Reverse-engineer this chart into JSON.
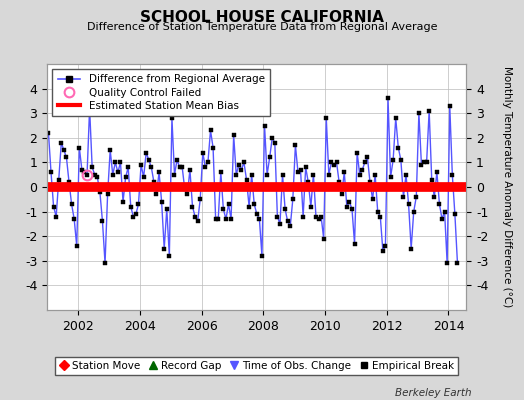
{
  "title": "SCHOOL HOUSE CALIFORNIA",
  "subtitle": "Difference of Station Temperature Data from Regional Average",
  "ylabel": "Monthly Temperature Anomaly Difference (°C)",
  "bias_value": 0.0,
  "ylim": [
    -5,
    5
  ],
  "xlim_start": 2001.0,
  "xlim_end": 2014.58,
  "xticks": [
    2002,
    2004,
    2006,
    2008,
    2010,
    2012,
    2014
  ],
  "yticks": [
    -4,
    -3,
    -2,
    -1,
    0,
    1,
    2,
    3,
    4
  ],
  "line_color": "#5555ff",
  "marker_color": "#000000",
  "bias_color": "#ff0000",
  "bias_linewidth": 7,
  "qc_color": "#ff69b4",
  "background_color": "#d8d8d8",
  "plot_bg_color": "#ffffff",
  "footer_text": "Berkeley Earth",
  "data": {
    "times": [
      2001.042,
      2001.125,
      2001.208,
      2001.292,
      2001.375,
      2001.458,
      2001.542,
      2001.625,
      2001.708,
      2001.792,
      2001.875,
      2001.958,
      2002.042,
      2002.125,
      2002.208,
      2002.292,
      2002.375,
      2002.458,
      2002.542,
      2002.625,
      2002.708,
      2002.792,
      2002.875,
      2002.958,
      2003.042,
      2003.125,
      2003.208,
      2003.292,
      2003.375,
      2003.458,
      2003.542,
      2003.625,
      2003.708,
      2003.792,
      2003.875,
      2003.958,
      2004.042,
      2004.125,
      2004.208,
      2004.292,
      2004.375,
      2004.458,
      2004.542,
      2004.625,
      2004.708,
      2004.792,
      2004.875,
      2004.958,
      2005.042,
      2005.125,
      2005.208,
      2005.292,
      2005.375,
      2005.458,
      2005.542,
      2005.625,
      2005.708,
      2005.792,
      2005.875,
      2005.958,
      2006.042,
      2006.125,
      2006.208,
      2006.292,
      2006.375,
      2006.458,
      2006.542,
      2006.625,
      2006.708,
      2006.792,
      2006.875,
      2006.958,
      2007.042,
      2007.125,
      2007.208,
      2007.292,
      2007.375,
      2007.458,
      2007.542,
      2007.625,
      2007.708,
      2007.792,
      2007.875,
      2007.958,
      2008.042,
      2008.125,
      2008.208,
      2008.292,
      2008.375,
      2008.458,
      2008.542,
      2008.625,
      2008.708,
      2008.792,
      2008.875,
      2008.958,
      2009.042,
      2009.125,
      2009.208,
      2009.292,
      2009.375,
      2009.458,
      2009.542,
      2009.625,
      2009.708,
      2009.792,
      2009.875,
      2009.958,
      2010.042,
      2010.125,
      2010.208,
      2010.292,
      2010.375,
      2010.458,
      2010.542,
      2010.625,
      2010.708,
      2010.792,
      2010.875,
      2010.958,
      2011.042,
      2011.125,
      2011.208,
      2011.292,
      2011.375,
      2011.458,
      2011.542,
      2011.625,
      2011.708,
      2011.792,
      2011.875,
      2011.958,
      2012.042,
      2012.125,
      2012.208,
      2012.292,
      2012.375,
      2012.458,
      2012.542,
      2012.625,
      2012.708,
      2012.792,
      2012.875,
      2012.958,
      2013.042,
      2013.125,
      2013.208,
      2013.292,
      2013.375,
      2013.458,
      2013.542,
      2013.625,
      2013.708,
      2013.792,
      2013.875,
      2013.958,
      2014.042,
      2014.125,
      2014.208,
      2014.292
    ],
    "values": [
      2.2,
      0.6,
      -0.8,
      -1.2,
      0.3,
      1.8,
      1.5,
      1.2,
      0.2,
      -0.7,
      -1.3,
      -2.4,
      1.6,
      0.7,
      0.6,
      0.5,
      3.2,
      0.8,
      0.5,
      0.4,
      -0.2,
      -1.4,
      -3.1,
      -0.3,
      1.5,
      0.5,
      1.0,
      0.6,
      1.0,
      -0.6,
      0.4,
      0.8,
      -0.8,
      -1.2,
      -1.1,
      -0.7,
      0.9,
      0.4,
      1.4,
      1.1,
      0.8,
      0.2,
      -0.3,
      0.6,
      -0.6,
      -2.5,
      -0.9,
      -2.8,
      2.8,
      0.5,
      1.1,
      0.8,
      0.8,
      -0.1,
      -0.3,
      0.7,
      -0.8,
      -1.2,
      -1.4,
      -0.5,
      1.4,
      0.8,
      1.0,
      2.3,
      1.6,
      -1.3,
      -1.3,
      0.6,
      -0.9,
      -1.3,
      -0.7,
      -1.3,
      2.1,
      0.5,
      0.9,
      0.7,
      1.0,
      0.3,
      -0.8,
      0.5,
      -0.7,
      -1.1,
      -1.3,
      -2.8,
      2.5,
      0.5,
      1.2,
      2.0,
      1.8,
      -1.2,
      -1.5,
      0.5,
      -0.9,
      -1.4,
      -1.6,
      -0.5,
      1.7,
      0.6,
      0.7,
      -1.2,
      0.8,
      0.2,
      -0.8,
      0.5,
      -1.2,
      -1.3,
      -1.2,
      -2.1,
      2.8,
      0.5,
      1.0,
      0.9,
      1.0,
      0.2,
      -0.3,
      0.6,
      -0.8,
      -0.6,
      -0.9,
      -2.3,
      1.4,
      0.5,
      0.7,
      1.0,
      1.2,
      0.2,
      -0.5,
      0.5,
      -1.0,
      -1.2,
      -2.6,
      -2.4,
      3.6,
      0.4,
      1.1,
      2.8,
      1.6,
      1.1,
      -0.4,
      0.5,
      -0.7,
      -2.5,
      -1.0,
      -0.4,
      3.0,
      0.9,
      1.0,
      1.0,
      3.1,
      0.3,
      -0.4,
      0.6,
      -0.7,
      -1.3,
      -1.0,
      -3.1,
      3.3,
      0.5,
      -1.1,
      -3.1
    ],
    "qc_failed_times": [
      2002.292
    ],
    "qc_failed_values": [
      0.5
    ]
  }
}
